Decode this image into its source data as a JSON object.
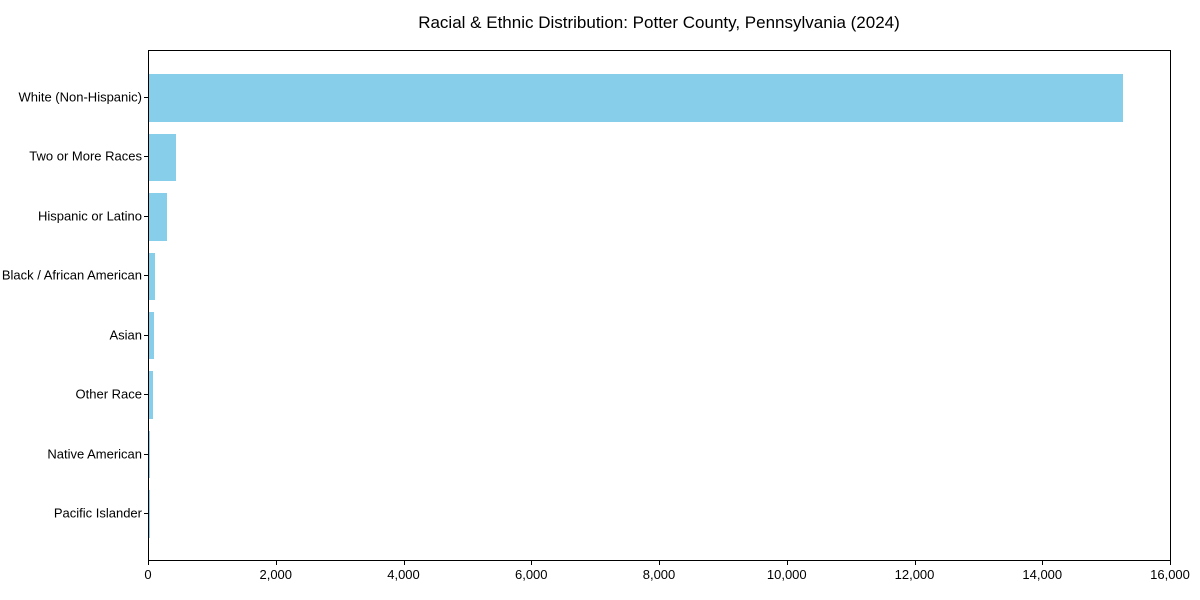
{
  "title": "Racial & Ethnic Distribution: Potter County, Pennsylvania (2024)",
  "colors": {
    "bar": "#87CEEB",
    "axis": "#000000",
    "background": "#FFFFFF",
    "text": "#000000"
  },
  "chart_data": {
    "type": "bar",
    "orientation": "horizontal",
    "title": "Racial & Ethnic Distribution: Potter County, Pennsylvania (2024)",
    "categories": [
      "White (Non-Hispanic)",
      "Two or More Races",
      "Hispanic or Latino",
      "Black / African American",
      "Asian",
      "Other Race",
      "Native American",
      "Pacific Islander"
    ],
    "values": [
      15250,
      420,
      280,
      90,
      75,
      65,
      20,
      5
    ],
    "xlabel": "",
    "ylabel": "",
    "xlim": [
      0,
      16000
    ],
    "x_ticks": [
      0,
      2000,
      4000,
      6000,
      8000,
      10000,
      12000,
      14000,
      16000
    ],
    "x_tick_labels": [
      "0",
      "2,000",
      "4,000",
      "6,000",
      "8,000",
      "10,000",
      "12,000",
      "14,000",
      "16,000"
    ],
    "grid": false,
    "legend": "none",
    "bar_color": "#87CEEB"
  }
}
